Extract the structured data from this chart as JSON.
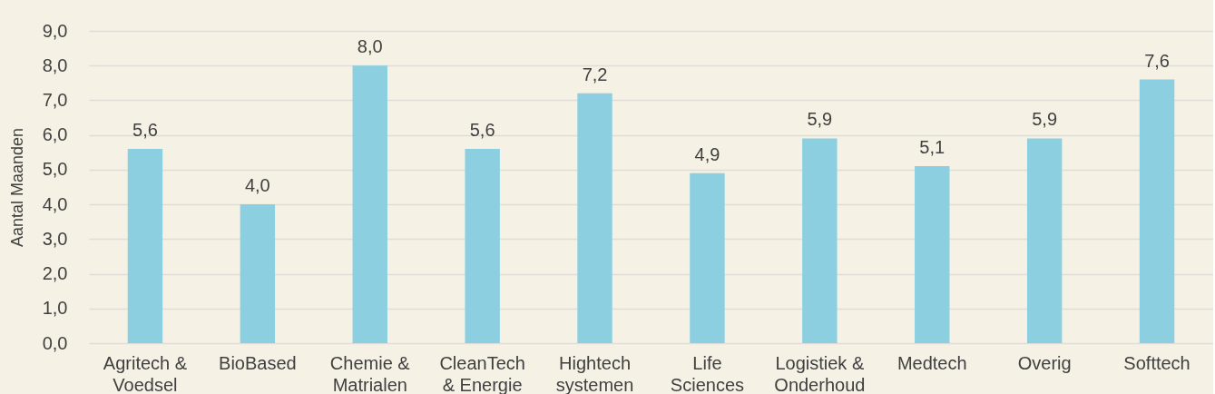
{
  "chart_data": {
    "type": "bar",
    "ylabel": "Aantal Maanden",
    "categories": [
      "Agritech & Voedsel",
      "BioBased",
      "Chemie & Matrialen",
      "CleanTech & Energie",
      "Hightech systemen",
      "Life Sciences",
      "Logistiek & Onderhoud",
      "Medtech",
      "Overig",
      "Softtech"
    ],
    "values": [
      5.6,
      4.0,
      8.0,
      5.6,
      7.2,
      4.9,
      5.9,
      5.1,
      5.9,
      7.6
    ],
    "value_labels": [
      "5,6",
      "4,0",
      "8,0",
      "5,6",
      "7,2",
      "4,9",
      "5,9",
      "5,1",
      "5,9",
      "7,6"
    ],
    "color": "#8bcfe0",
    "ylim": [
      0,
      9
    ],
    "yticks": [
      {
        "value": 0,
        "label": "0,0"
      },
      {
        "value": 1,
        "label": "1,0"
      },
      {
        "value": 2,
        "label": "2,0"
      },
      {
        "value": 3,
        "label": "3,0"
      },
      {
        "value": 4,
        "label": "4,0"
      },
      {
        "value": 5,
        "label": "5,0"
      },
      {
        "value": 6,
        "label": "6,0"
      },
      {
        "value": 7,
        "label": "7,0"
      },
      {
        "value": 8,
        "label": "8,0"
      },
      {
        "value": 9,
        "label": "9,0"
      }
    ],
    "grid": "y"
  }
}
